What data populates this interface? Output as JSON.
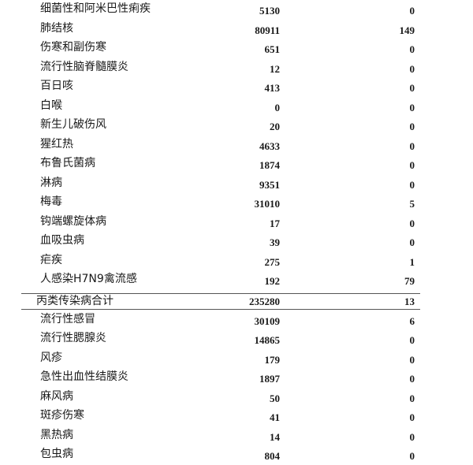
{
  "rows_before": [
    {
      "name": "细菌性和阿米巴性痢疾",
      "cases": "5130",
      "deaths": "0"
    },
    {
      "name": "肺结核",
      "cases": "80911",
      "deaths": "149"
    },
    {
      "name": "伤寒和副伤寒",
      "cases": "651",
      "deaths": "0"
    },
    {
      "name": "流行性脑脊髓膜炎",
      "cases": "12",
      "deaths": "0"
    },
    {
      "name": "百日咳",
      "cases": "413",
      "deaths": "0"
    },
    {
      "name": "白喉",
      "cases": "0",
      "deaths": "0"
    },
    {
      "name": "新生儿破伤风",
      "cases": "20",
      "deaths": "0"
    },
    {
      "name": "猩红热",
      "cases": "4633",
      "deaths": "0"
    },
    {
      "name": "布鲁氏菌病",
      "cases": "1874",
      "deaths": "0"
    },
    {
      "name": "淋病",
      "cases": "9351",
      "deaths": "0"
    },
    {
      "name": "梅毒",
      "cases": "31010",
      "deaths": "5"
    },
    {
      "name": "钩端螺旋体病",
      "cases": "17",
      "deaths": "0"
    },
    {
      "name": "血吸虫病",
      "cases": "39",
      "deaths": "0"
    },
    {
      "name": "疟疾",
      "cases": "275",
      "deaths": "1"
    },
    {
      "name": "人感染H7N9禽流感",
      "cases": "192",
      "deaths": "79"
    }
  ],
  "total": {
    "name": "丙类传染病合计",
    "cases": "235280",
    "deaths": "13"
  },
  "rows_after": [
    {
      "name": "流行性感冒",
      "cases": "30109",
      "deaths": "6"
    },
    {
      "name": "流行性腮腺炎",
      "cases": "14865",
      "deaths": "0"
    },
    {
      "name": "风疹",
      "cases": "179",
      "deaths": "0"
    },
    {
      "name": "急性出血性结膜炎",
      "cases": "1897",
      "deaths": "0"
    },
    {
      "name": "麻风病",
      "cases": "50",
      "deaths": "0"
    },
    {
      "name": "斑疹伤寒",
      "cases": "41",
      "deaths": "0"
    },
    {
      "name": "黑热病",
      "cases": "14",
      "deaths": "0"
    },
    {
      "name": "包虫病",
      "cases": "804",
      "deaths": "0"
    }
  ]
}
